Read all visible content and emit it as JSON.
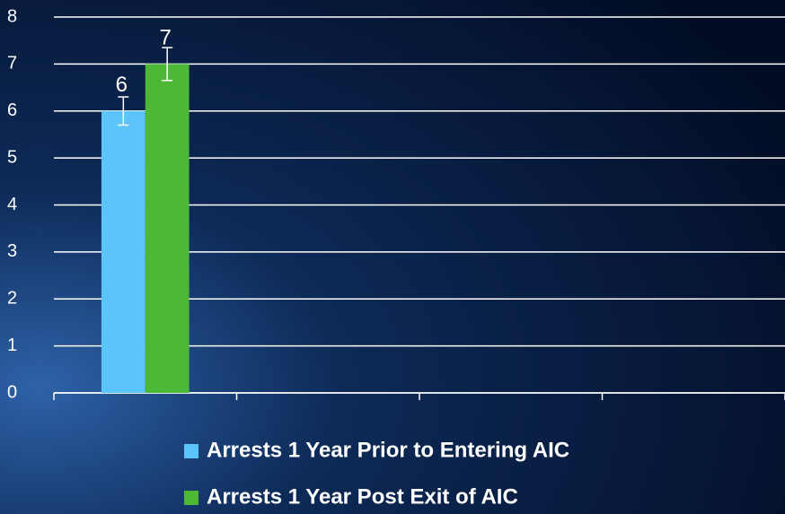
{
  "chart_data": {
    "type": "bar",
    "categories": [
      null,
      null,
      null,
      null
    ],
    "series": [
      {
        "name": "Arrests 1 Year Prior to Entering AIC",
        "color": "#5bc4f9",
        "values": [
          6,
          null,
          null,
          null
        ],
        "errors": [
          0.3,
          null,
          null,
          null
        ]
      },
      {
        "name": "Arrests 1 Year Post Exit of AIC",
        "color": "#4cb836",
        "values": [
          7,
          null,
          null,
          null
        ],
        "errors": [
          0.35,
          null,
          null,
          null
        ]
      }
    ],
    "ylim": [
      0,
      8
    ],
    "yticks": [
      0,
      1,
      2,
      3,
      4,
      5,
      6,
      7,
      8
    ],
    "grid": true,
    "legend": "bottom"
  }
}
